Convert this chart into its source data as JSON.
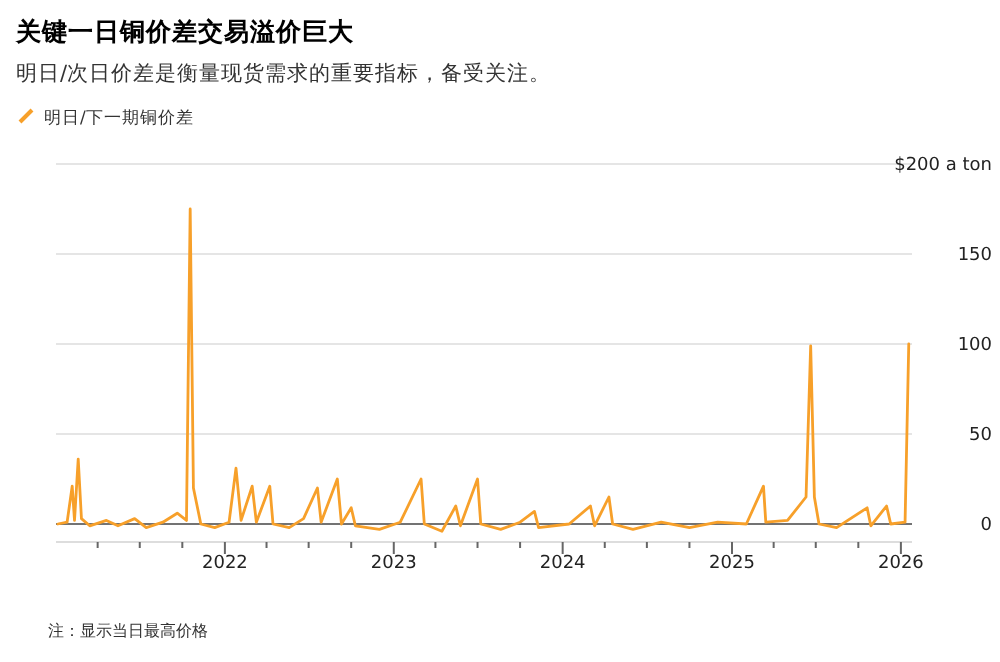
{
  "chart_data": {
    "type": "line",
    "title": "关键一日铜价差交易溢价巨大",
    "subtitle": "明日/次日价差是衡量现货需求的重要指标，备受关注。",
    "x": [
      "2021-01-05",
      "2021-01-25",
      "2021-02-05",
      "2021-02-10",
      "2021-02-18",
      "2021-02-25",
      "2021-03-15",
      "2021-04-20",
      "2021-05-15",
      "2021-06-20",
      "2021-07-15",
      "2021-08-20",
      "2021-09-20",
      "2021-10-10",
      "2021-10-18",
      "2021-10-25",
      "2021-11-10",
      "2021-12-10",
      "2022-01-10",
      "2022-01-25",
      "2022-02-05",
      "2022-03-01",
      "2022-03-10",
      "2022-04-08",
      "2022-04-15",
      "2022-05-20",
      "2022-06-20",
      "2022-07-20",
      "2022-07-28",
      "2022-09-01",
      "2022-09-10",
      "2022-10-01",
      "2022-10-10",
      "2022-12-01",
      "2023-01-15",
      "2023-03-01",
      "2023-03-08",
      "2023-04-15",
      "2023-05-15",
      "2023-05-25",
      "2023-07-01",
      "2023-07-08",
      "2023-08-20",
      "2023-10-01",
      "2023-11-01",
      "2023-11-10",
      "2024-01-15",
      "2024-03-01",
      "2024-03-10",
      "2024-04-10",
      "2024-04-18",
      "2024-06-01",
      "2024-08-01",
      "2024-10-01",
      "2024-12-01",
      "2025-02-01",
      "2025-03-10",
      "2025-03-15",
      "2025-05-01",
      "2025-06-10",
      "2025-06-20",
      "2025-06-28",
      "2025-07-08",
      "2025-08-15",
      "2025-10-20",
      "2025-10-28",
      "2025-12-01",
      "2025-12-10",
      "2026-01-10",
      "2026-01-18"
    ],
    "series": [
      {
        "name": "明日/下一期铜价差",
        "color": "#f7a02a",
        "values": [
          0,
          1,
          21,
          2,
          36,
          3,
          -1,
          2,
          -1,
          3,
          -2,
          1,
          6,
          2,
          175,
          20,
          0,
          -2,
          1,
          31,
          2,
          21,
          1,
          21,
          0,
          -2,
          3,
          20,
          1,
          25,
          0,
          9,
          -1,
          -3,
          1,
          25,
          0,
          -4,
          10,
          -1,
          25,
          0,
          -3,
          1,
          7,
          -2,
          0,
          10,
          -1,
          15,
          0,
          -3,
          1,
          -2,
          1,
          0,
          21,
          1,
          2,
          15,
          99,
          15,
          0,
          -2,
          9,
          -1,
          10,
          0,
          1,
          100
        ]
      }
    ],
    "xlim": [
      "2021-01-01",
      "2026-01-25"
    ],
    "xticks": [
      {
        "value": "2021-04-01",
        "label": null
      },
      {
        "value": "2021-07-01",
        "label": null
      },
      {
        "value": "2021-10-01",
        "label": null
      },
      {
        "value": "2022-01-01",
        "label": "2022"
      },
      {
        "value": "2022-04-01",
        "label": null
      },
      {
        "value": "2022-07-01",
        "label": null
      },
      {
        "value": "2022-10-01",
        "label": null
      },
      {
        "value": "2023-01-01",
        "label": "2023"
      },
      {
        "value": "2023-04-01",
        "label": null
      },
      {
        "value": "2023-07-01",
        "label": null
      },
      {
        "value": "2023-10-01",
        "label": null
      },
      {
        "value": "2024-01-01",
        "label": "2024"
      },
      {
        "value": "2024-04-01",
        "label": null
      },
      {
        "value": "2024-07-01",
        "label": null
      },
      {
        "value": "2024-10-01",
        "label": null
      },
      {
        "value": "2025-01-01",
        "label": "2025"
      },
      {
        "value": "2025-04-01",
        "label": null
      },
      {
        "value": "2025-07-01",
        "label": null
      },
      {
        "value": "2025-10-01",
        "label": null
      },
      {
        "value": "2026-01-01",
        "label": "2026"
      }
    ],
    "ylim": [
      -10,
      200
    ],
    "yticks": [
      0,
      50,
      100,
      150,
      {
        "value": 200,
        "label": "$200 a ton"
      }
    ],
    "grid": "y",
    "legend": "top left",
    "marker": "none",
    "line_style": "solid",
    "annotations": [
      "注：显示当日最高价格"
    ]
  }
}
